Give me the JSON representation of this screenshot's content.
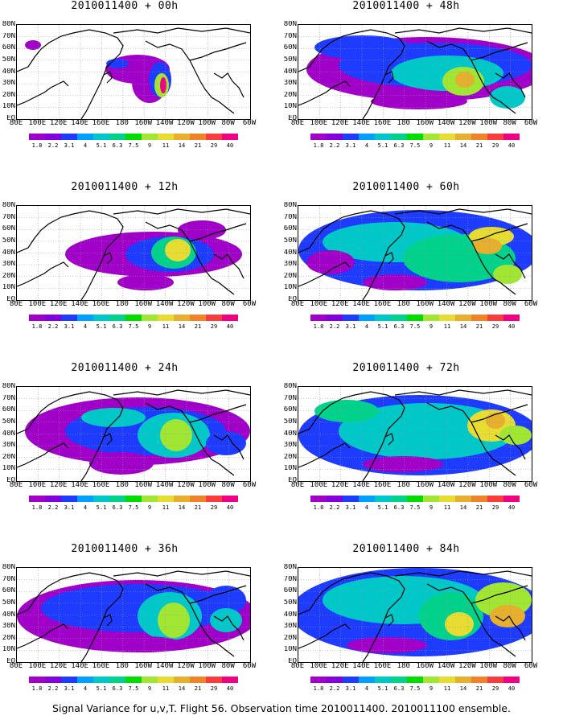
{
  "panels": [
    {
      "title": "2010011400 + 00h"
    },
    {
      "title": "2010011400 + 48h"
    },
    {
      "title": "2010011400 + 12h"
    },
    {
      "title": "2010011400 + 60h"
    },
    {
      "title": "2010011400 + 24h"
    },
    {
      "title": "2010011400 + 72h"
    },
    {
      "title": "2010011400 + 36h"
    },
    {
      "title": "2010011400 + 84h"
    }
  ],
  "lat_labels": [
    "80N",
    "70N",
    "60N",
    "50N",
    "40N",
    "30N",
    "20N",
    "10N",
    "EQ"
  ],
  "lon_labels": [
    "80E",
    "100E",
    "120E",
    "140E",
    "160E",
    "180",
    "160W",
    "140W",
    "120W",
    "100W",
    "80W",
    "60W"
  ],
  "colorbar": {
    "colors": [
      "#a000c8",
      "#8200dc",
      "#1e3cff",
      "#00a0ff",
      "#00c8c8",
      "#00d28c",
      "#00dc00",
      "#a0e632",
      "#e6dc32",
      "#e6af2d",
      "#f08228",
      "#fa3c3c",
      "#f00082"
    ],
    "labels": [
      "1.8",
      "2.2",
      "3.1",
      "4",
      "5.1",
      "6.3",
      "7.5",
      "9",
      "11",
      "14",
      "21",
      "29",
      "40"
    ]
  },
  "footer": "Signal Variance for u,v,T. Flight 56. Observation time 2010011400. 2010011100 ensemble."
}
